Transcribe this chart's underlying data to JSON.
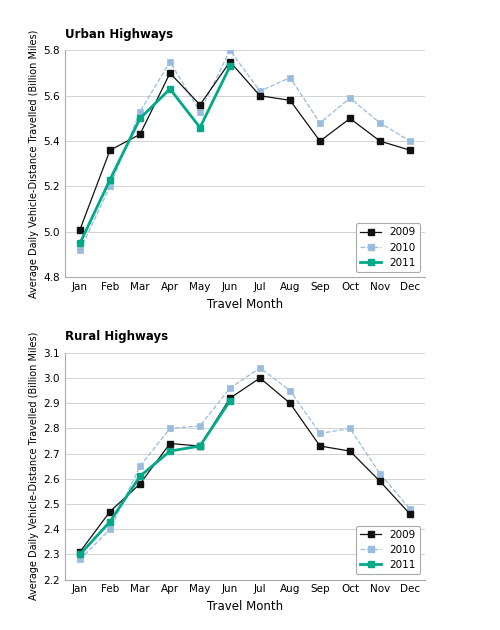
{
  "months": [
    "Jan",
    "Feb",
    "Mar",
    "Apr",
    "May",
    "Jun",
    "Jul",
    "Aug",
    "Sep",
    "Oct",
    "Nov",
    "Dec"
  ],
  "urban": {
    "title": "Urban Highways",
    "ylabel": "Average Daily Vehicle-Distance Travelled (Billion Miles)",
    "xlabel": "Travel Month",
    "ylim": [
      4.8,
      5.8
    ],
    "yticks": [
      4.8,
      5.0,
      5.2,
      5.4,
      5.6,
      5.8
    ],
    "y2009": [
      5.01,
      5.36,
      5.43,
      5.7,
      5.56,
      5.75,
      5.6,
      5.58,
      5.4,
      5.5,
      5.4,
      5.36
    ],
    "y2010": [
      4.92,
      5.2,
      5.53,
      5.75,
      5.53,
      5.8,
      5.62,
      5.68,
      5.48,
      5.59,
      5.48,
      5.4
    ],
    "y2011": [
      4.95,
      5.23,
      5.5,
      5.63,
      5.46,
      5.73,
      null,
      null,
      null,
      null,
      null,
      null
    ]
  },
  "rural": {
    "title": "Rural Highways",
    "ylabel": "Average Daily Vehicle-Distance Travelled (Billion Miles)",
    "xlabel": "Travel Month",
    "ylim": [
      2.2,
      3.1
    ],
    "yticks": [
      2.2,
      2.3,
      2.4,
      2.5,
      2.6,
      2.7,
      2.8,
      2.9,
      3.0,
      3.1
    ],
    "y2009": [
      2.31,
      2.47,
      2.58,
      2.74,
      2.73,
      2.92,
      3.0,
      2.9,
      2.73,
      2.71,
      2.59,
      2.46
    ],
    "y2010": [
      2.28,
      2.4,
      2.65,
      2.8,
      2.81,
      2.96,
      3.04,
      2.95,
      2.78,
      2.8,
      2.62,
      2.48
    ],
    "y2011": [
      2.3,
      2.43,
      2.61,
      2.71,
      2.73,
      2.91,
      null,
      null,
      null,
      null,
      null,
      null
    ]
  },
  "color_2009": "#111111",
  "color_2010": "#99bbdd",
  "color_2011": "#00aa88"
}
